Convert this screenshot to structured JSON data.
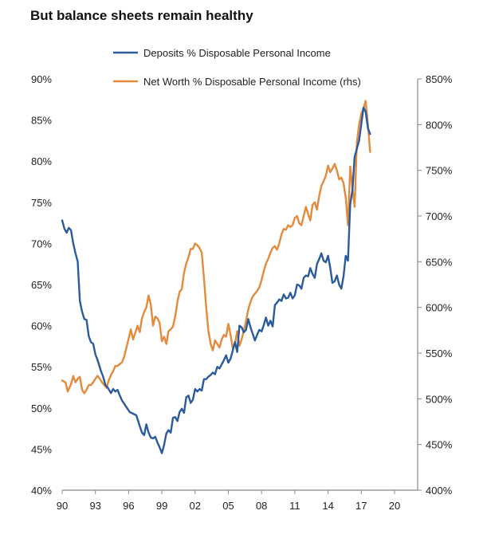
{
  "chart_data": {
    "type": "line",
    "title": "But balance sheets remain healthy",
    "xlabel": "",
    "ylabel": "",
    "x_range": [
      1990,
      2021.8
    ],
    "x_ticks": [
      {
        "value": 1990,
        "label": "90"
      },
      {
        "value": 1993,
        "label": "93"
      },
      {
        "value": 1996,
        "label": "96"
      },
      {
        "value": 1999,
        "label": "99"
      },
      {
        "value": 2002,
        "label": "02"
      },
      {
        "value": 2005,
        "label": "05"
      },
      {
        "value": 2008,
        "label": "08"
      },
      {
        "value": 2011,
        "label": "11"
      },
      {
        "value": 2014,
        "label": "14"
      },
      {
        "value": 2017,
        "label": "17"
      },
      {
        "value": 2020,
        "label": "20"
      }
    ],
    "y_left": {
      "range": [
        40,
        90
      ],
      "ticks": [
        40,
        45,
        50,
        55,
        60,
        65,
        70,
        75,
        80,
        85,
        90
      ],
      "tick_labels": [
        "40%",
        "45%",
        "50%",
        "55%",
        "60%",
        "65%",
        "70%",
        "75%",
        "80%",
        "85%",
        "90%"
      ]
    },
    "y_right": {
      "range": [
        400,
        850
      ],
      "ticks": [
        400,
        450,
        500,
        550,
        600,
        650,
        700,
        750,
        800,
        850
      ],
      "tick_labels": [
        "400%",
        "450%",
        "500%",
        "550%",
        "600%",
        "650%",
        "700%",
        "750%",
        "800%",
        "850%"
      ]
    },
    "grid": false,
    "legend": "top",
    "series": [
      {
        "name": "Deposits % Disposable Personal Income",
        "axis": "left",
        "color": "#2a5b9c",
        "points": [
          [
            1990.0,
            72.8
          ],
          [
            1990.2,
            71.8
          ],
          [
            1990.4,
            71.3
          ],
          [
            1990.6,
            71.9
          ],
          [
            1990.8,
            71.6
          ],
          [
            1991.0,
            70.0
          ],
          [
            1991.2,
            68.8
          ],
          [
            1991.4,
            67.8
          ],
          [
            1991.6,
            63.0
          ],
          [
            1991.8,
            61.7
          ],
          [
            1992.0,
            60.8
          ],
          [
            1992.2,
            60.7
          ],
          [
            1992.4,
            58.7
          ],
          [
            1992.6,
            58.0
          ],
          [
            1992.8,
            57.8
          ],
          [
            1993.0,
            56.5
          ],
          [
            1993.2,
            55.8
          ],
          [
            1993.5,
            54.5
          ],
          [
            1993.7,
            53.8
          ],
          [
            1993.9,
            52.8
          ],
          [
            1994.1,
            52.5
          ],
          [
            1994.4,
            51.8
          ],
          [
            1994.6,
            52.3
          ],
          [
            1994.8,
            52.0
          ],
          [
            1995.0,
            52.2
          ],
          [
            1995.2,
            51.5
          ],
          [
            1995.4,
            50.9
          ],
          [
            1995.7,
            50.3
          ],
          [
            1995.9,
            49.9
          ],
          [
            1996.1,
            49.5
          ],
          [
            1996.4,
            49.3
          ],
          [
            1996.7,
            49.1
          ],
          [
            1997.0,
            47.8
          ],
          [
            1997.2,
            47.0
          ],
          [
            1997.4,
            46.7
          ],
          [
            1997.6,
            48.0
          ],
          [
            1997.8,
            47.0
          ],
          [
            1998.0,
            46.4
          ],
          [
            1998.2,
            46.3
          ],
          [
            1998.4,
            46.5
          ],
          [
            1998.6,
            45.8
          ],
          [
            1998.8,
            45.2
          ],
          [
            1999.0,
            44.5
          ],
          [
            1999.2,
            45.5
          ],
          [
            1999.4,
            46.9
          ],
          [
            1999.6,
            47.3
          ],
          [
            1999.8,
            47.0
          ],
          [
            2000.0,
            48.8
          ],
          [
            2000.2,
            48.9
          ],
          [
            2000.4,
            48.4
          ],
          [
            2000.6,
            49.5
          ],
          [
            2000.8,
            49.9
          ],
          [
            2001.0,
            49.4
          ],
          [
            2001.2,
            51.3
          ],
          [
            2001.4,
            51.5
          ],
          [
            2001.6,
            50.6
          ],
          [
            2001.8,
            51.0
          ],
          [
            2002.0,
            52.3
          ],
          [
            2002.2,
            52.0
          ],
          [
            2002.4,
            52.3
          ],
          [
            2002.6,
            52.1
          ],
          [
            2002.8,
            53.5
          ],
          [
            2003.0,
            53.5
          ],
          [
            2003.2,
            53.8
          ],
          [
            2003.4,
            54.0
          ],
          [
            2003.6,
            54.3
          ],
          [
            2003.8,
            54.1
          ],
          [
            2004.0,
            55.0
          ],
          [
            2004.2,
            54.8
          ],
          [
            2004.4,
            55.3
          ],
          [
            2004.6,
            55.8
          ],
          [
            2004.8,
            56.4
          ],
          [
            2005.0,
            55.5
          ],
          [
            2005.2,
            56.0
          ],
          [
            2005.4,
            57.0
          ],
          [
            2005.6,
            58.0
          ],
          [
            2005.8,
            56.8
          ],
          [
            2006.0,
            60.0
          ],
          [
            2006.2,
            59.8
          ],
          [
            2006.4,
            59.2
          ],
          [
            2006.6,
            59.5
          ],
          [
            2006.8,
            60.8
          ],
          [
            2007.0,
            59.8
          ],
          [
            2007.2,
            59.0
          ],
          [
            2007.4,
            58.2
          ],
          [
            2007.6,
            58.9
          ],
          [
            2007.8,
            59.5
          ],
          [
            2008.0,
            59.3
          ],
          [
            2008.2,
            60.1
          ],
          [
            2008.4,
            61.0
          ],
          [
            2008.6,
            60.0
          ],
          [
            2008.8,
            60.6
          ],
          [
            2009.0,
            59.9
          ],
          [
            2009.2,
            62.5
          ],
          [
            2009.4,
            62.8
          ],
          [
            2009.6,
            63.2
          ],
          [
            2009.8,
            63.0
          ],
          [
            2010.0,
            63.8
          ],
          [
            2010.2,
            63.3
          ],
          [
            2010.4,
            63.4
          ],
          [
            2010.6,
            64.0
          ],
          [
            2010.8,
            63.3
          ],
          [
            2011.0,
            63.7
          ],
          [
            2011.2,
            65.0
          ],
          [
            2011.4,
            64.9
          ],
          [
            2011.6,
            64.5
          ],
          [
            2011.8,
            65.8
          ],
          [
            2012.0,
            66.1
          ],
          [
            2012.2,
            66.0
          ],
          [
            2012.4,
            67.0
          ],
          [
            2012.6,
            66.3
          ],
          [
            2012.8,
            65.8
          ],
          [
            2013.0,
            67.5
          ],
          [
            2013.2,
            68.1
          ],
          [
            2013.4,
            68.8
          ],
          [
            2013.6,
            67.9
          ],
          [
            2013.8,
            67.7
          ],
          [
            2014.0,
            68.5
          ],
          [
            2014.2,
            67.0
          ],
          [
            2014.4,
            65.2
          ],
          [
            2014.6,
            65.4
          ],
          [
            2014.8,
            66.1
          ],
          [
            2015.0,
            65.0
          ],
          [
            2015.2,
            64.5
          ],
          [
            2015.4,
            66.0
          ],
          [
            2015.6,
            68.5
          ],
          [
            2015.8,
            67.9
          ],
          [
            2016.0,
            74.8
          ],
          [
            2016.2,
            76.5
          ],
          [
            2016.4,
            80.5
          ],
          [
            2016.6,
            81.5
          ],
          [
            2016.8,
            82.5
          ],
          [
            2017.0,
            84.5
          ],
          [
            2017.2,
            86.5
          ],
          [
            2017.4,
            86.0
          ],
          [
            2017.6,
            84.0
          ],
          [
            2017.8,
            83.3
          ]
        ]
      },
      {
        "name": "Net Worth % Disposable Personal Income (rhs)",
        "axis": "right",
        "color": "#e38a3c",
        "points": [
          [
            1990.0,
            520
          ],
          [
            1990.3,
            518
          ],
          [
            1990.5,
            508
          ],
          [
            1990.8,
            516
          ],
          [
            1991.0,
            525
          ],
          [
            1991.2,
            518
          ],
          [
            1991.4,
            522
          ],
          [
            1991.6,
            524
          ],
          [
            1991.8,
            510
          ],
          [
            1992.0,
            506
          ],
          [
            1992.2,
            510
          ],
          [
            1992.4,
            515
          ],
          [
            1992.6,
            515
          ],
          [
            1992.8,
            518
          ],
          [
            1993.0,
            522
          ],
          [
            1993.2,
            525
          ],
          [
            1993.4,
            522
          ],
          [
            1993.6,
            518
          ],
          [
            1993.8,
            515
          ],
          [
            1994.0,
            512
          ],
          [
            1994.2,
            520
          ],
          [
            1994.4,
            526
          ],
          [
            1994.6,
            530
          ],
          [
            1994.8,
            536
          ],
          [
            1995.0,
            536
          ],
          [
            1995.2,
            538
          ],
          [
            1995.4,
            540
          ],
          [
            1995.6,
            546
          ],
          [
            1995.8,
            556
          ],
          [
            1996.0,
            566
          ],
          [
            1996.2,
            576
          ],
          [
            1996.4,
            565
          ],
          [
            1996.6,
            572
          ],
          [
            1996.8,
            580
          ],
          [
            1997.0,
            573
          ],
          [
            1997.2,
            588
          ],
          [
            1997.4,
            595
          ],
          [
            1997.6,
            600
          ],
          [
            1997.8,
            613
          ],
          [
            1998.0,
            603
          ],
          [
            1998.2,
            580
          ],
          [
            1998.4,
            590
          ],
          [
            1998.6,
            588
          ],
          [
            1998.8,
            583
          ],
          [
            1999.0,
            563
          ],
          [
            1999.2,
            568
          ],
          [
            1999.4,
            560
          ],
          [
            1999.6,
            574
          ],
          [
            1999.8,
            576
          ],
          [
            2000.0,
            579
          ],
          [
            2000.2,
            590
          ],
          [
            2000.4,
            606
          ],
          [
            2000.6,
            617
          ],
          [
            2000.8,
            620
          ],
          [
            2001.0,
            638
          ],
          [
            2001.2,
            648
          ],
          [
            2001.4,
            655
          ],
          [
            2001.6,
            664
          ],
          [
            2001.8,
            664
          ],
          [
            2002.0,
            670
          ],
          [
            2002.2,
            668
          ],
          [
            2002.4,
            665
          ],
          [
            2002.6,
            660
          ],
          [
            2002.8,
            632
          ],
          [
            2003.0,
            600
          ],
          [
            2003.2,
            574
          ],
          [
            2003.4,
            560
          ],
          [
            2003.6,
            553
          ],
          [
            2003.8,
            564
          ],
          [
            2004.0,
            560
          ],
          [
            2004.2,
            556
          ],
          [
            2004.4,
            565
          ],
          [
            2004.6,
            570
          ],
          [
            2004.8,
            568
          ],
          [
            2005.0,
            582
          ],
          [
            2005.2,
            570
          ],
          [
            2005.4,
            555
          ],
          [
            2005.6,
            560
          ],
          [
            2005.8,
            574
          ],
          [
            2006.0,
            558
          ],
          [
            2006.2,
            565
          ],
          [
            2006.4,
            575
          ],
          [
            2006.6,
            585
          ],
          [
            2006.8,
            598
          ],
          [
            2007.0,
            606
          ],
          [
            2007.2,
            612
          ],
          [
            2007.4,
            615
          ],
          [
            2007.6,
            618
          ],
          [
            2007.8,
            622
          ],
          [
            2008.0,
            630
          ],
          [
            2008.2,
            640
          ],
          [
            2008.4,
            648
          ],
          [
            2008.6,
            653
          ],
          [
            2008.8,
            660
          ],
          [
            2009.0,
            665
          ],
          [
            2009.2,
            667
          ],
          [
            2009.4,
            663
          ],
          [
            2009.6,
            670
          ],
          [
            2009.8,
            680
          ],
          [
            2010.0,
            686
          ],
          [
            2010.2,
            685
          ],
          [
            2010.4,
            690
          ],
          [
            2010.6,
            688
          ],
          [
            2010.8,
            690
          ],
          [
            2011.0,
            698
          ],
          [
            2011.2,
            700
          ],
          [
            2011.4,
            692
          ],
          [
            2011.6,
            690
          ],
          [
            2011.8,
            700
          ],
          [
            2012.0,
            710
          ],
          [
            2012.2,
            702
          ],
          [
            2012.4,
            695
          ],
          [
            2012.6,
            712
          ],
          [
            2012.8,
            715
          ],
          [
            2013.0,
            707
          ],
          [
            2013.2,
            722
          ],
          [
            2013.4,
            733
          ],
          [
            2013.6,
            738
          ],
          [
            2013.8,
            744
          ],
          [
            2014.0,
            755
          ],
          [
            2014.2,
            748
          ],
          [
            2014.4,
            752
          ],
          [
            2014.6,
            757
          ],
          [
            2014.8,
            750
          ],
          [
            2015.0,
            740
          ],
          [
            2015.2,
            742
          ],
          [
            2015.4,
            736
          ],
          [
            2015.6,
            720
          ],
          [
            2015.8,
            690
          ],
          [
            2016.0,
            754
          ],
          [
            2016.2,
            730
          ],
          [
            2016.4,
            710
          ],
          [
            2016.6,
            780
          ],
          [
            2016.8,
            800
          ],
          [
            2017.0,
            812
          ],
          [
            2017.2,
            818
          ],
          [
            2017.4,
            826
          ],
          [
            2017.6,
            800
          ],
          [
            2017.8,
            770
          ]
        ]
      }
    ]
  }
}
